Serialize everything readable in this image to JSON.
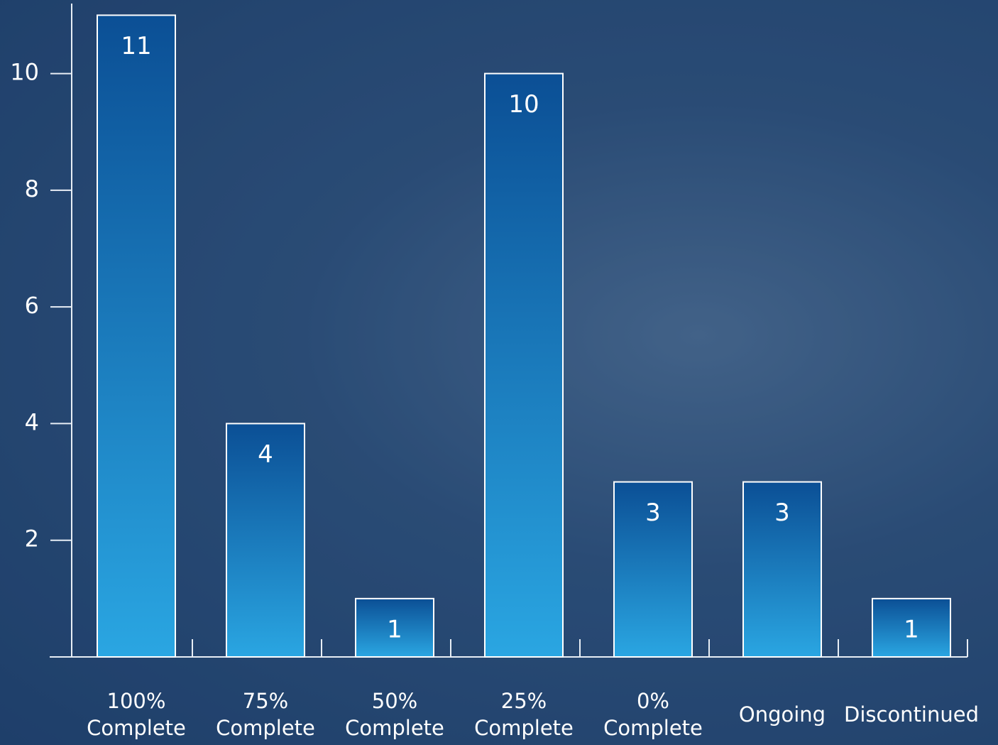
{
  "chart_data": {
    "type": "bar",
    "categories": [
      "100% Complete",
      "75% Complete",
      "50% Complete",
      "25% Complete",
      "0% Complete",
      "Ongoing",
      "Discontinued"
    ],
    "values": [
      11,
      4,
      1,
      10,
      3,
      3,
      1
    ],
    "color": "#1a7fcc",
    "ylim": [
      0,
      11.2
    ],
    "yticks": [
      2,
      4,
      6,
      8,
      10
    ],
    "grid": false
  }
}
